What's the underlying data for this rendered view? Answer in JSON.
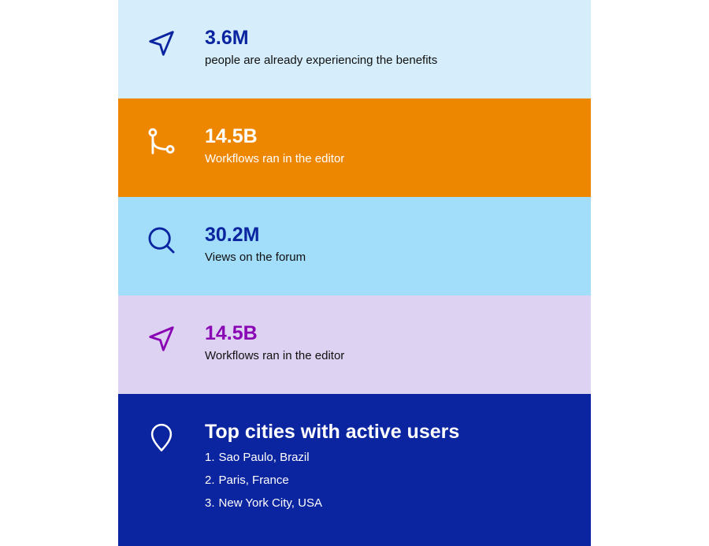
{
  "stats": [
    {
      "value": "3.6M",
      "description": "people are already experiencing the benefits",
      "icon": "navigation-arrow-icon",
      "bg": "#d6eefb",
      "accent": "#0b24a0"
    },
    {
      "value": "14.5B",
      "description": "Workflows ran in the editor",
      "icon": "git-branch-icon",
      "bg": "#ee8700",
      "accent": "#ffffff"
    },
    {
      "value": "30.2M",
      "description": "Views on the forum",
      "icon": "search-icon",
      "bg": "#a2ddfa",
      "accent": "#0b24a0"
    },
    {
      "value": "14.5B",
      "description": "Workflows ran in the editor",
      "icon": "navigation-arrow-icon",
      "bg": "#ddd2f2",
      "accent": "#8a06b4"
    }
  ],
  "cities": {
    "heading": "Top cities with active users",
    "icon": "map-pin-icon",
    "bg": "#0b24a0",
    "items": [
      {
        "num": "1.",
        "label": "Sao Paulo, Brazil"
      },
      {
        "num": "2.",
        "label": "Paris, France"
      },
      {
        "num": "3.",
        "label": "New York City, USA"
      }
    ]
  }
}
